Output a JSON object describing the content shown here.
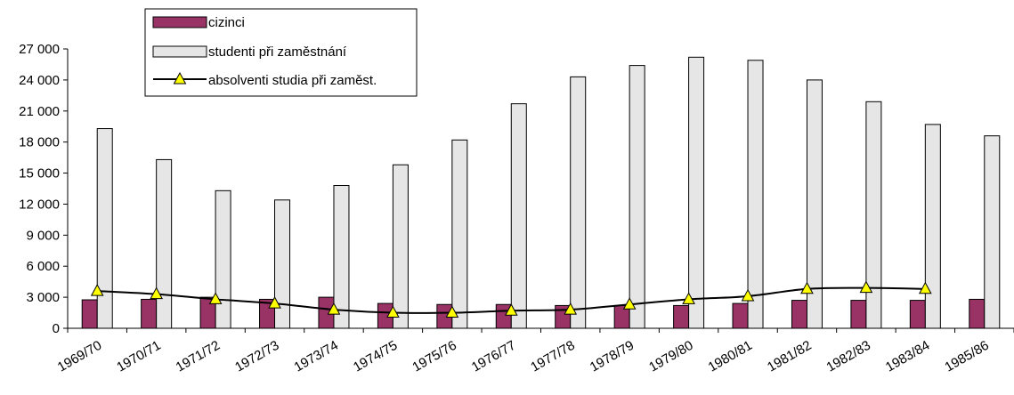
{
  "chart_data": {
    "type": "bar",
    "categories": [
      "1969/70",
      "1970/71",
      "1971/72",
      "1972/73",
      "1973/74",
      "1974/75",
      "1975/76",
      "1976/77",
      "1977/78",
      "1978/79",
      "1979/80",
      "1980/81",
      "1981/82",
      "1982/83",
      "1983/84",
      "1985/86"
    ],
    "series": [
      {
        "name": "cizinci",
        "type": "bar",
        "color": "#993366",
        "values": [
          2750,
          2800,
          3000,
          2800,
          3000,
          2400,
          2300,
          2300,
          2200,
          2200,
          2200,
          2400,
          2700,
          2700,
          2700,
          2800
        ]
      },
      {
        "name": "studenti při zaměstnání",
        "type": "bar",
        "color": "#e6e6e6",
        "values": [
          19300,
          16300,
          13300,
          12400,
          13800,
          15800,
          18200,
          21700,
          24300,
          25400,
          26200,
          25900,
          24000,
          21900,
          19700,
          18600
        ]
      },
      {
        "name": "absolventi studia při zaměst.",
        "type": "line",
        "color": "#000000",
        "marker_color": "#ffff00",
        "values": [
          3600,
          3300,
          2800,
          2400,
          1800,
          1500,
          1500,
          1700,
          1800,
          2300,
          2800,
          3100,
          3800,
          3900,
          3800,
          null
        ]
      }
    ],
    "ylim": [
      0,
      27000
    ],
    "y_ticks": [
      0,
      3000,
      6000,
      9000,
      12000,
      15000,
      18000,
      21000,
      24000,
      27000
    ],
    "y_tick_labels": [
      "0",
      "3 000",
      "6 000",
      "9 000",
      "12 000",
      "15 000",
      "18 000",
      "21 000",
      "24 000",
      "27 000"
    ],
    "legend_position": "top-left",
    "grid": false
  }
}
